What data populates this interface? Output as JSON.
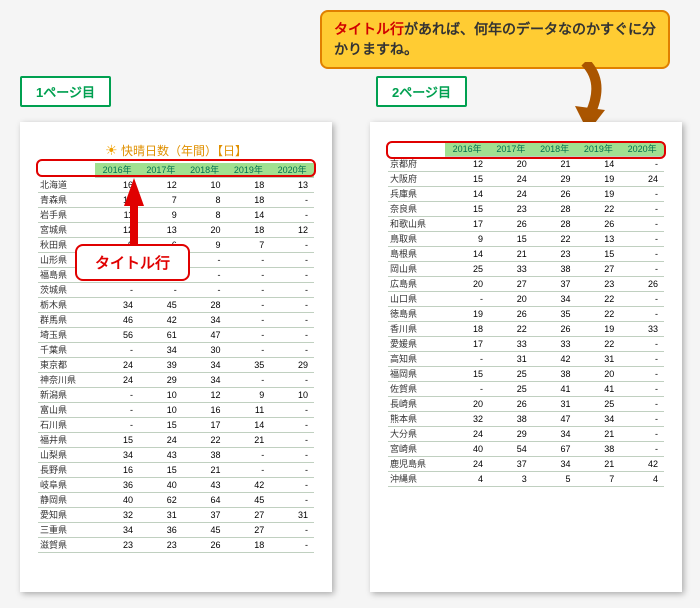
{
  "callout": {
    "emphasis": "タイトル行",
    "text_rest": "があれば、何年のデータなのかすぐに分かりますね。"
  },
  "label_page1": "1ページ目",
  "label_page2": "2ページ目",
  "popup_label": "タイトル行",
  "chart_title": "快晴日数（年間）【日】",
  "columns": [
    "2016年",
    "2017年",
    "2018年",
    "2019年",
    "2020年"
  ],
  "page1_rows": [
    [
      "北海道",
      "16",
      "12",
      "10",
      "18",
      "13"
    ],
    [
      "青森県",
      "13",
      "7",
      "8",
      "18",
      "-"
    ],
    [
      "岩手県",
      "11",
      "9",
      "8",
      "14",
      "-"
    ],
    [
      "宮城県",
      "12",
      "13",
      "20",
      "18",
      "12"
    ],
    [
      "秋田県",
      "9",
      "6",
      "9",
      "7",
      "-"
    ],
    [
      "山形県",
      "-",
      "-",
      "-",
      "-",
      "-"
    ],
    [
      "福島県",
      "-",
      "-",
      "-",
      "-",
      "-"
    ],
    [
      "茨城県",
      "-",
      "-",
      "-",
      "-",
      "-"
    ],
    [
      "栃木県",
      "34",
      "45",
      "28",
      "-",
      "-"
    ],
    [
      "群馬県",
      "46",
      "42",
      "34",
      "-",
      "-"
    ],
    [
      "埼玉県",
      "56",
      "61",
      "47",
      "-",
      "-"
    ],
    [
      "千葉県",
      "-",
      "34",
      "30",
      "-",
      "-"
    ],
    [
      "東京都",
      "24",
      "39",
      "34",
      "35",
      "29"
    ],
    [
      "神奈川県",
      "24",
      "29",
      "34",
      "-",
      "-"
    ],
    [
      "新潟県",
      "-",
      "10",
      "12",
      "9",
      "10"
    ],
    [
      "富山県",
      "-",
      "10",
      "16",
      "11",
      "-"
    ],
    [
      "石川県",
      "-",
      "15",
      "17",
      "14",
      "-"
    ],
    [
      "福井県",
      "15",
      "24",
      "22",
      "21",
      "-"
    ],
    [
      "山梨県",
      "34",
      "43",
      "38",
      "-",
      "-"
    ],
    [
      "長野県",
      "16",
      "15",
      "21",
      "-",
      "-"
    ],
    [
      "岐阜県",
      "36",
      "40",
      "43",
      "42",
      "-"
    ],
    [
      "静岡県",
      "40",
      "62",
      "64",
      "45",
      "-"
    ],
    [
      "愛知県",
      "32",
      "31",
      "37",
      "27",
      "31"
    ],
    [
      "三重県",
      "34",
      "36",
      "45",
      "27",
      "-"
    ],
    [
      "滋賀県",
      "23",
      "23",
      "26",
      "18",
      "-"
    ]
  ],
  "page2_rows": [
    [
      "京都府",
      "12",
      "20",
      "21",
      "14",
      "-"
    ],
    [
      "大阪府",
      "15",
      "24",
      "29",
      "19",
      "24"
    ],
    [
      "兵庫県",
      "14",
      "24",
      "26",
      "19",
      "-"
    ],
    [
      "奈良県",
      "15",
      "23",
      "28",
      "22",
      "-"
    ],
    [
      "和歌山県",
      "17",
      "26",
      "28",
      "26",
      "-"
    ],
    [
      "鳥取県",
      "9",
      "15",
      "22",
      "13",
      "-"
    ],
    [
      "島根県",
      "14",
      "21",
      "23",
      "15",
      "-"
    ],
    [
      "岡山県",
      "25",
      "33",
      "38",
      "27",
      "-"
    ],
    [
      "広島県",
      "20",
      "27",
      "37",
      "23",
      "26"
    ],
    [
      "山口県",
      "-",
      "20",
      "34",
      "22",
      "-"
    ],
    [
      "徳島県",
      "19",
      "26",
      "35",
      "22",
      "-"
    ],
    [
      "香川県",
      "18",
      "22",
      "26",
      "19",
      "33"
    ],
    [
      "愛媛県",
      "17",
      "33",
      "33",
      "22",
      "-"
    ],
    [
      "高知県",
      "-",
      "31",
      "42",
      "31",
      "-"
    ],
    [
      "福岡県",
      "15",
      "25",
      "38",
      "20",
      "-"
    ],
    [
      "佐賀県",
      "-",
      "25",
      "41",
      "41",
      "-"
    ],
    [
      "長崎県",
      "20",
      "26",
      "31",
      "25",
      "-"
    ],
    [
      "熊本県",
      "32",
      "38",
      "47",
      "34",
      "-"
    ],
    [
      "大分県",
      "24",
      "29",
      "34",
      "21",
      "-"
    ],
    [
      "宮崎県",
      "40",
      "54",
      "67",
      "38",
      "-"
    ],
    [
      "鹿児島県",
      "24",
      "37",
      "34",
      "21",
      "42"
    ],
    [
      "沖縄県",
      "4",
      "3",
      "5",
      "7",
      "4"
    ]
  ],
  "colors": {
    "border_green": "#00a050",
    "header_bg": "#a0e090",
    "header_fg": "#007050",
    "red": "#e00000",
    "callout_bg": "#ffcc33",
    "callout_border": "#e08000",
    "title_fg": "#e09000"
  }
}
